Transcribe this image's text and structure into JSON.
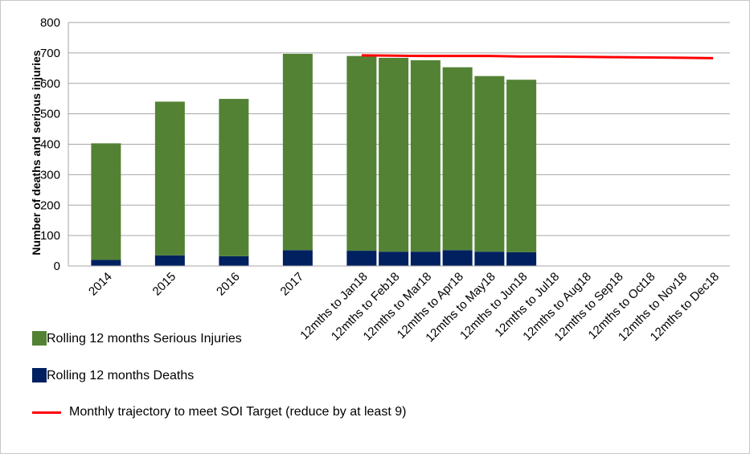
{
  "chart_data": {
    "type": "stacked_bar_line",
    "y_label": "Number of deaths and serious injuries",
    "categories": [
      "2014",
      null,
      "2015",
      null,
      "2016",
      null,
      "2017",
      null,
      "12mths to Jan18",
      "12mths to Feb18",
      "12mths to Mar18",
      "12mths to Apr18",
      "12mths to May18",
      "12mths to Jun18",
      "12mths to Jul18",
      "12mths to Aug18",
      "12mths to Sep18",
      "12mths to Oct18",
      "12mths to Nov18",
      "12mths to Dec18"
    ],
    "series": [
      {
        "name": "Rolling 12 months Serious Injuries",
        "color": "#548235",
        "kind": "bar",
        "values": [
          383,
          null,
          505,
          null,
          517,
          null,
          645,
          null,
          640,
          637,
          629,
          601,
          577,
          567,
          null,
          null,
          null,
          null,
          null,
          null
        ]
      },
      {
        "name": "Rolling 12 months Deaths",
        "color": "#002060",
        "kind": "bar",
        "values": [
          20,
          null,
          35,
          null,
          32,
          null,
          52,
          null,
          50,
          47,
          47,
          52,
          47,
          45,
          null,
          null,
          null,
          null,
          null,
          null
        ]
      },
      {
        "name": "Monthly trajectory to meet SOI Target (reduce by at least 9)",
        "color": "#ff0000",
        "kind": "line",
        "values": [
          null,
          null,
          null,
          null,
          null,
          null,
          null,
          null,
          692,
          691,
          690,
          690,
          690,
          688,
          688,
          687,
          686,
          685,
          684,
          683
        ]
      }
    ],
    "ylim": [
      0,
      800
    ],
    "yticks": [
      0,
      100,
      200,
      300,
      400,
      500,
      600,
      700,
      800
    ],
    "grid": true
  }
}
